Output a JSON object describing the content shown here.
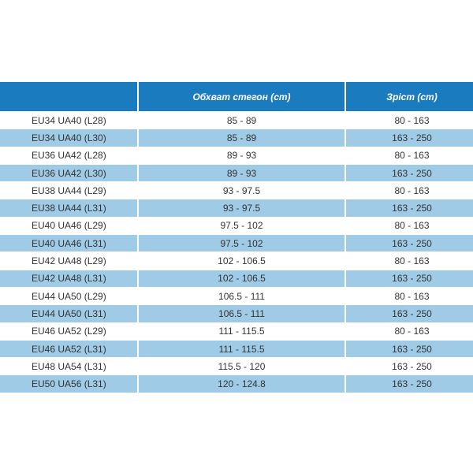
{
  "table": {
    "header": [
      "Обхват стегон (cm)",
      "Зріст (cm)"
    ],
    "rows": [
      [
        "EU34 UA40 (L28)",
        "85 - 89",
        "80 - 163"
      ],
      [
        "EU34 UA40 (L30)",
        "85 - 89",
        "163 - 250"
      ],
      [
        "EU36 UA42 (L28)",
        "89 - 93",
        "80 - 163"
      ],
      [
        "EU36 UA42 (L30)",
        "89 - 93",
        "163 - 250"
      ],
      [
        "EU38 UA44 (L29)",
        "93 - 97.5",
        "80 - 163"
      ],
      [
        "EU38 UA44 (L31)",
        "93 - 97.5",
        "163 - 250"
      ],
      [
        "EU40 UA46 (L29)",
        "97.5 - 102",
        "80 - 163"
      ],
      [
        "EU40 UA46 (L31)",
        "97.5 - 102",
        "163 - 250"
      ],
      [
        "EU42 UA48 (L29)",
        "102 - 106.5",
        "80 - 163"
      ],
      [
        "EU42 UA48 (L31)",
        "102 - 106.5",
        "163 - 250"
      ],
      [
        "EU44 UA50 (L29)",
        "106.5 - 111",
        "80 - 163"
      ],
      [
        "EU44 UA50 (L31)",
        "106.5 - 111",
        "163 - 250"
      ],
      [
        "EU46 UA52 (L29)",
        "111 - 115.5",
        "80 - 163"
      ],
      [
        "EU46 UA52 (L31)",
        "111 - 115.5",
        "163 - 250"
      ],
      [
        "EU48 UA54 (L31)",
        "115.5 - 120",
        "163 - 250"
      ],
      [
        "EU50 UA56 (L31)",
        "120 - 124.8",
        "163 - 250"
      ]
    ]
  }
}
